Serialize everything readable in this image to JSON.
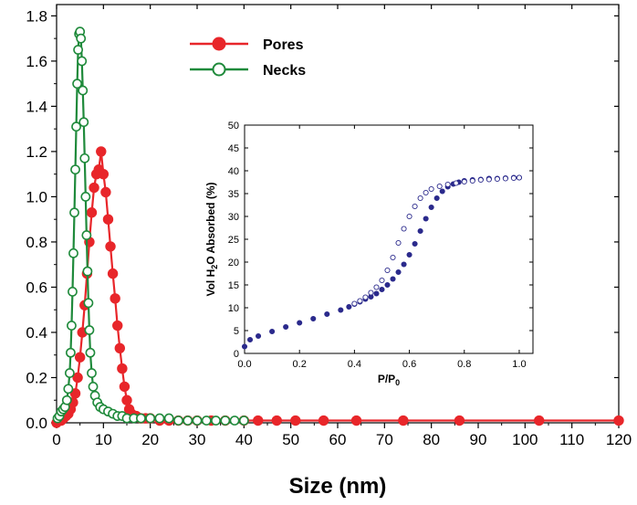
{
  "chart_data": [
    {
      "type": "line",
      "title": "",
      "xlabel": "Size (nm)",
      "ylabel": "",
      "xlim": [
        0,
        120
      ],
      "ylim": [
        0,
        1.85
      ],
      "xticks": [
        0,
        10,
        20,
        30,
        40,
        50,
        60,
        70,
        80,
        90,
        100,
        110,
        120
      ],
      "yticks": [
        0.0,
        0.2,
        0.4,
        0.6,
        0.8,
        1.0,
        1.2,
        1.4,
        1.6,
        1.8
      ],
      "ytick_labels": [
        "0.0",
        "0.2",
        "0.4",
        "0.6",
        "0.8",
        "1.0",
        "1.2",
        "1.4",
        "1.6",
        "1.8"
      ],
      "grid": false,
      "legend_position": "top-center",
      "series": [
        {
          "name": "Pores",
          "color": "#e8262a",
          "marker": "filled-circle",
          "points": [
            [
              0.0,
              0.0
            ],
            [
              0.5,
              0.01
            ],
            [
              1.0,
              0.01
            ],
            [
              1.5,
              0.02
            ],
            [
              2.0,
              0.03
            ],
            [
              2.5,
              0.04
            ],
            [
              3.0,
              0.06
            ],
            [
              3.5,
              0.09
            ],
            [
              4.0,
              0.13
            ],
            [
              4.5,
              0.2
            ],
            [
              5.0,
              0.29
            ],
            [
              5.5,
              0.4
            ],
            [
              6.0,
              0.52
            ],
            [
              6.5,
              0.66
            ],
            [
              7.0,
              0.8
            ],
            [
              7.5,
              0.93
            ],
            [
              8.0,
              1.04
            ],
            [
              8.5,
              1.1
            ],
            [
              9.0,
              1.12
            ],
            [
              9.5,
              1.2
            ],
            [
              10.0,
              1.1
            ],
            [
              10.5,
              1.02
            ],
            [
              11.0,
              0.9
            ],
            [
              11.5,
              0.78
            ],
            [
              12.0,
              0.66
            ],
            [
              12.5,
              0.55
            ],
            [
              13.0,
              0.43
            ],
            [
              13.5,
              0.33
            ],
            [
              14.0,
              0.24
            ],
            [
              14.5,
              0.16
            ],
            [
              15.0,
              0.1
            ],
            [
              15.5,
              0.06
            ],
            [
              16.0,
              0.04
            ],
            [
              17.0,
              0.03
            ],
            [
              18.0,
              0.02
            ],
            [
              19.0,
              0.02
            ],
            [
              20.0,
              0.02
            ],
            [
              22.0,
              0.01
            ],
            [
              24.0,
              0.01
            ],
            [
              26.0,
              0.01
            ],
            [
              28.0,
              0.01
            ],
            [
              30.0,
              0.01
            ],
            [
              33.0,
              0.01
            ],
            [
              36.0,
              0.01
            ],
            [
              40.0,
              0.01
            ],
            [
              43.0,
              0.01
            ],
            [
              47.0,
              0.01
            ],
            [
              51.0,
              0.01
            ],
            [
              57.0,
              0.01
            ],
            [
              64.0,
              0.01
            ],
            [
              74.0,
              0.01
            ],
            [
              86.0,
              0.01
            ],
            [
              103.0,
              0.01
            ],
            [
              120.0,
              0.01
            ]
          ]
        },
        {
          "name": "Necks",
          "color": "#1f8a3b",
          "marker": "open-circle",
          "points": [
            [
              0.2,
              0.02
            ],
            [
              0.6,
              0.03
            ],
            [
              1.0,
              0.05
            ],
            [
              1.4,
              0.06
            ],
            [
              1.8,
              0.07
            ],
            [
              2.2,
              0.1
            ],
            [
              2.5,
              0.15
            ],
            [
              2.8,
              0.22
            ],
            [
              3.0,
              0.31
            ],
            [
              3.2,
              0.43
            ],
            [
              3.4,
              0.58
            ],
            [
              3.6,
              0.75
            ],
            [
              3.8,
              0.93
            ],
            [
              4.0,
              1.12
            ],
            [
              4.2,
              1.31
            ],
            [
              4.4,
              1.5
            ],
            [
              4.6,
              1.65
            ],
            [
              4.8,
              1.72
            ],
            [
              5.0,
              1.73
            ],
            [
              5.2,
              1.7
            ],
            [
              5.4,
              1.6
            ],
            [
              5.6,
              1.47
            ],
            [
              5.8,
              1.33
            ],
            [
              6.0,
              1.17
            ],
            [
              6.2,
              1.0
            ],
            [
              6.4,
              0.83
            ],
            [
              6.6,
              0.67
            ],
            [
              6.8,
              0.53
            ],
            [
              7.0,
              0.41
            ],
            [
              7.2,
              0.31
            ],
            [
              7.5,
              0.22
            ],
            [
              7.8,
              0.16
            ],
            [
              8.2,
              0.12
            ],
            [
              8.7,
              0.09
            ],
            [
              9.3,
              0.07
            ],
            [
              10.0,
              0.06
            ],
            [
              11.0,
              0.05
            ],
            [
              12.0,
              0.04
            ],
            [
              13.0,
              0.03
            ],
            [
              14.0,
              0.03
            ],
            [
              15.0,
              0.02
            ],
            [
              16.5,
              0.02
            ],
            [
              18.0,
              0.02
            ],
            [
              20.0,
              0.02
            ],
            [
              22.0,
              0.02
            ],
            [
              24.0,
              0.02
            ],
            [
              26.0,
              0.01
            ],
            [
              28.0,
              0.01
            ],
            [
              30.0,
              0.01
            ],
            [
              32.0,
              0.01
            ],
            [
              34.0,
              0.01
            ],
            [
              36.0,
              0.01
            ],
            [
              38.0,
              0.01
            ],
            [
              40.0,
              0.01
            ]
          ]
        }
      ]
    },
    {
      "type": "scatter",
      "title": "",
      "xlabel_main": "P/P",
      "xlabel_sub": "0",
      "ylabel_parts": [
        "Vol H",
        "2",
        "O Absorbed (%)"
      ],
      "xlim": [
        0,
        1.05
      ],
      "ylim": [
        0,
        50
      ],
      "xticks": [
        0.0,
        0.2,
        0.4,
        0.6,
        0.8,
        1.0
      ],
      "xtick_labels": [
        "0.0",
        "0.2",
        "0.4",
        "0.6",
        "0.8",
        "1.0"
      ],
      "yticks": [
        0,
        5,
        10,
        15,
        20,
        25,
        30,
        35,
        40,
        45,
        50
      ],
      "grid": false,
      "series": [
        {
          "name": "",
          "color": "#2b2a8c",
          "marker": "filled-circle",
          "points": [
            [
              0.0,
              1.5
            ],
            [
              0.02,
              3.0
            ],
            [
              0.05,
              3.8
            ],
            [
              0.1,
              4.8
            ],
            [
              0.15,
              5.8
            ],
            [
              0.2,
              6.7
            ],
            [
              0.25,
              7.6
            ],
            [
              0.3,
              8.6
            ],
            [
              0.35,
              9.5
            ],
            [
              0.38,
              10.2
            ],
            [
              0.4,
              10.8
            ],
            [
              0.42,
              11.3
            ],
            [
              0.44,
              11.9
            ],
            [
              0.46,
              12.4
            ],
            [
              0.48,
              13.1
            ],
            [
              0.5,
              14.0
            ],
            [
              0.52,
              15.0
            ],
            [
              0.54,
              16.3
            ],
            [
              0.56,
              17.8
            ],
            [
              0.58,
              19.5
            ],
            [
              0.6,
              21.6
            ],
            [
              0.62,
              24.0
            ],
            [
              0.64,
              26.8
            ],
            [
              0.66,
              29.5
            ],
            [
              0.68,
              32.0
            ],
            [
              0.7,
              34.0
            ],
            [
              0.72,
              35.5
            ],
            [
              0.74,
              36.5
            ],
            [
              0.76,
              37.1
            ],
            [
              0.78,
              37.5
            ],
            [
              0.8,
              37.8
            ],
            [
              0.83,
              38.0
            ],
            [
              0.86,
              38.1
            ],
            [
              0.89,
              38.3
            ],
            [
              0.92,
              38.3
            ],
            [
              0.95,
              38.4
            ],
            [
              0.98,
              38.5
            ],
            [
              1.0,
              38.5
            ]
          ]
        },
        {
          "name": "",
          "color": "#2b2a8c",
          "marker": "open-circle",
          "points": [
            [
              1.0,
              38.5
            ],
            [
              0.98,
              38.4
            ],
            [
              0.95,
              38.3
            ],
            [
              0.92,
              38.2
            ],
            [
              0.89,
              38.1
            ],
            [
              0.86,
              38.0
            ],
            [
              0.83,
              37.8
            ],
            [
              0.8,
              37.6
            ],
            [
              0.77,
              37.3
            ],
            [
              0.74,
              37.0
            ],
            [
              0.71,
              36.6
            ],
            [
              0.68,
              36.0
            ],
            [
              0.66,
              35.2
            ],
            [
              0.64,
              34.0
            ],
            [
              0.62,
              32.2
            ],
            [
              0.6,
              30.0
            ],
            [
              0.58,
              27.3
            ],
            [
              0.56,
              24.2
            ],
            [
              0.54,
              21.0
            ],
            [
              0.52,
              18.2
            ],
            [
              0.5,
              16.0
            ],
            [
              0.48,
              14.5
            ],
            [
              0.46,
              13.3
            ],
            [
              0.44,
              12.3
            ],
            [
              0.42,
              11.5
            ],
            [
              0.4,
              10.9
            ]
          ]
        }
      ]
    }
  ]
}
